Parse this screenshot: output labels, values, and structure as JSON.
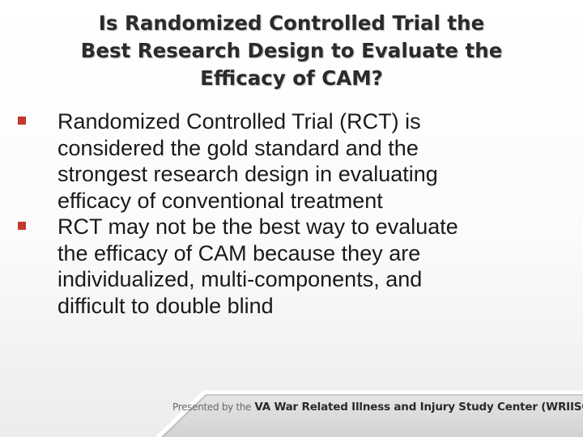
{
  "slide": {
    "title_lines": [
      "Is Randomized Controlled Trial the",
      "Best Research Design to Evaluate the",
      "Efficacy of CAM?"
    ],
    "bullets": [
      {
        "lines": [
          "Randomized Controlled Trial (RCT) is",
          "considered the gold standard and the",
          "strongest research design in evaluating",
          "efficacy of conventional treatment"
        ]
      },
      {
        "lines": [
          "RCT may not be the best way to evaluate",
          "the efficacy of CAM because they are",
          "individualized, multi-components, and",
          "difficult to double blind"
        ]
      }
    ],
    "footer": {
      "prefix": "Presented by the",
      "organization": "VA War Related Illness and Injury Study Center (WRIISC)"
    },
    "colors": {
      "bullet_marker": "#c0392b",
      "title_text": "#2b2b2b"
    },
    "icons": {
      "bullet": "square-bullet-icon"
    }
  }
}
